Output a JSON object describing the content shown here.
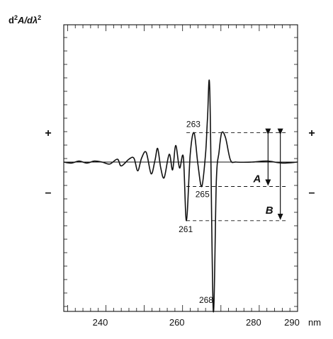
{
  "chart_data": {
    "type": "line",
    "ylabel_parts": [
      "d",
      "2",
      "A/d",
      "λ",
      "2"
    ],
    "xunit": "nm",
    "xlim": [
      229,
      290
    ],
    "ylim": [
      -1.55,
      1.0
    ],
    "x_ticks": [
      240,
      260,
      280,
      290
    ],
    "x_tick_labels": [
      "240",
      "260",
      "280",
      "290"
    ],
    "y_sign_labels": {
      "positive": "+",
      "negative": "–"
    },
    "grid": false,
    "legend": "none",
    "series": [
      {
        "points": [
          [
            229,
            0.0
          ],
          [
            231,
            -0.01
          ],
          [
            233,
            0.01
          ],
          [
            235,
            -0.01
          ],
          [
            237,
            0.01
          ],
          [
            239,
            0.0
          ],
          [
            241,
            -0.02
          ],
          [
            243,
            0.03
          ],
          [
            244,
            -0.04
          ],
          [
            246,
            0.03
          ],
          [
            247.3,
            0.04
          ],
          [
            248.3,
            -0.09
          ],
          [
            249.3,
            0.04
          ],
          [
            250.5,
            0.1
          ],
          [
            251.8,
            -0.12
          ],
          [
            252.8,
            0.02
          ],
          [
            253.5,
            0.14
          ],
          [
            254.3,
            -0.06
          ],
          [
            255.2,
            -0.16
          ],
          [
            256.5,
            0.08
          ],
          [
            257.4,
            -0.08
          ],
          [
            258.2,
            0.17
          ],
          [
            259.2,
            -0.06
          ],
          [
            260.2,
            0.05
          ],
          [
            261.0,
            -0.6
          ],
          [
            262.0,
            0.08
          ],
          [
            263.0,
            0.3
          ],
          [
            264.0,
            -0.02
          ],
          [
            265.0,
            -0.25
          ],
          [
            266.0,
            0.09
          ],
          [
            266.5,
            0.45
          ],
          [
            267.1,
            0.73
          ],
          [
            268.0,
            -1.52
          ],
          [
            268.8,
            -0.2
          ],
          [
            269.5,
            0.1
          ],
          [
            270.2,
            0.3
          ],
          [
            271.2,
            0.25
          ],
          [
            272.5,
            0.02
          ],
          [
            274,
            0.0
          ],
          [
            278,
            0.0
          ],
          [
            282,
            0.01
          ],
          [
            286,
            -0.01
          ],
          [
            290,
            0.0
          ]
        ]
      }
    ],
    "peak_labels": [
      {
        "text": "263",
        "x": 263.0,
        "y": 0.3
      },
      {
        "text": "265",
        "x": 265.0,
        "y": -0.25
      },
      {
        "text": "261",
        "x": 261.0,
        "y": -0.6
      },
      {
        "text": "268",
        "x": 268.0,
        "y": -1.52
      }
    ],
    "reference_lines": {
      "upper": 0.3,
      "middle": -0.25,
      "lower": -0.6,
      "x_from": 261,
      "x_to": 285
    },
    "measurements": [
      {
        "label": "A",
        "x": 282.3,
        "from": 0.3,
        "to": -0.25
      },
      {
        "label": "B",
        "x": 285.5,
        "from": 0.3,
        "to": -0.6
      }
    ]
  }
}
